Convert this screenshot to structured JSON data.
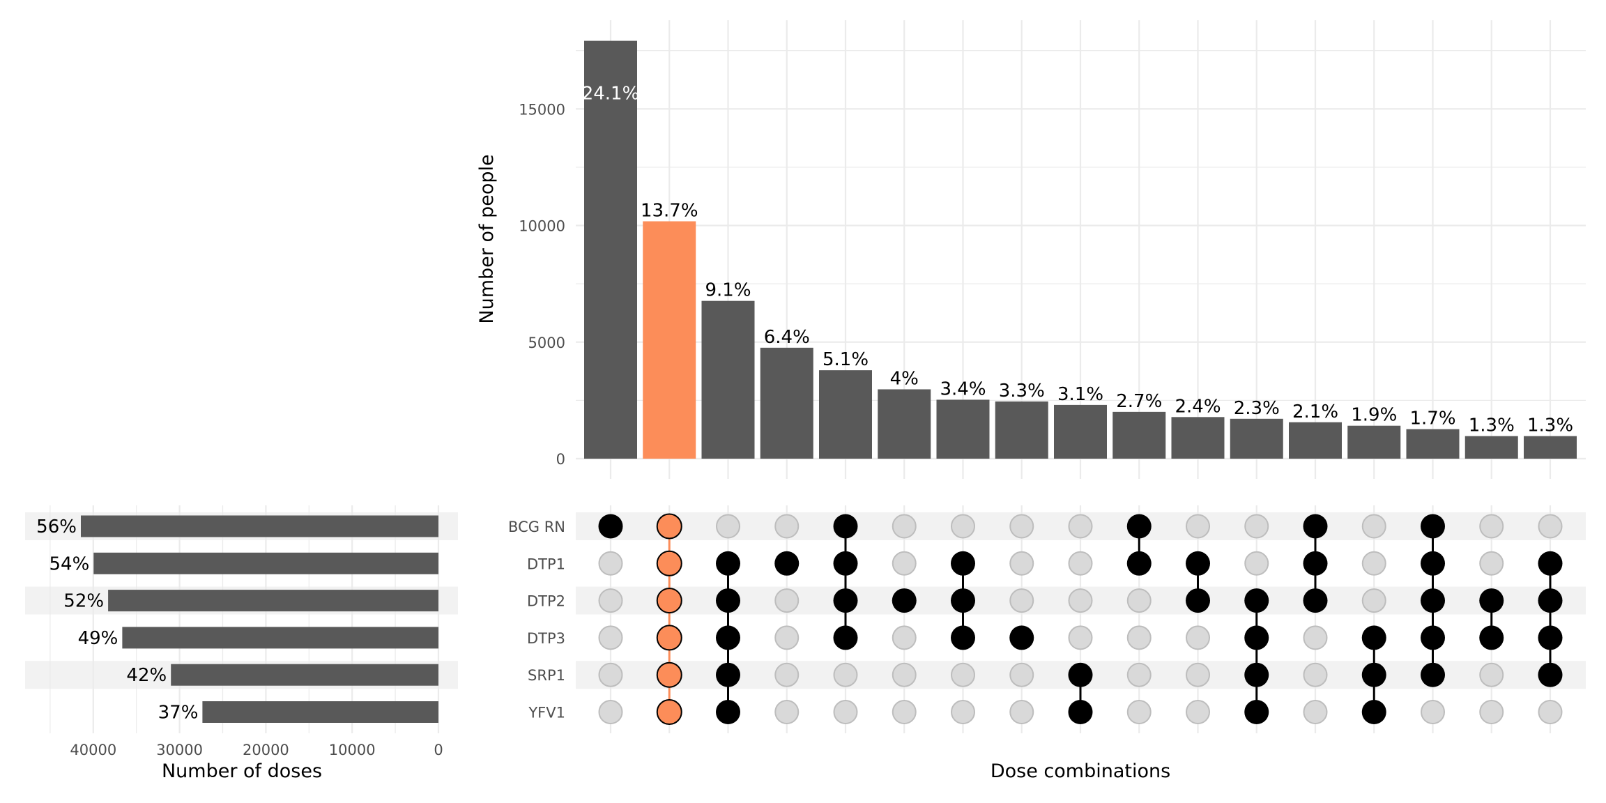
{
  "chart_data": {
    "type": "upset",
    "colors": {
      "bar": "#595959",
      "highlight": "#fc8d59",
      "dot_active": "#000000",
      "dot_inactive_fill": "#d9d9d9",
      "dot_inactive_stroke": "#bdbdbd",
      "stripe": "#f2f2f2",
      "grid": "#ebebeb",
      "highlight_label_text": "#ffffff"
    },
    "intersections": {
      "title": "",
      "xlabel": "Dose combinations",
      "ylabel": "Number of people",
      "ylim": [
        0,
        18500
      ],
      "yticks": [
        0,
        5000,
        10000,
        15000
      ],
      "ytick_labels": [
        "0",
        "5000",
        "10000",
        "15000"
      ],
      "grid": true,
      "values": [
        17920,
        10180,
        6766,
        4758,
        3792,
        2974,
        2528,
        2453,
        2305,
        2007,
        1784,
        1710,
        1561,
        1413,
        1264,
        967,
        967
      ],
      "labels": [
        "24.1%",
        "13.7%",
        "9.1%",
        "6.4%",
        "5.1%",
        "4%",
        "3.4%",
        "3.3%",
        "3.1%",
        "2.7%",
        "2.4%",
        "2.3%",
        "2.1%",
        "1.9%",
        "1.7%",
        "1.3%",
        "1.3%"
      ],
      "highlighted_index": 1,
      "label_inside_index": 0
    },
    "sets": {
      "names": [
        "BCG RN",
        "DTP1",
        "DTP2",
        "DTP3",
        "SRP1",
        "YFV1"
      ],
      "striped_rows": [
        0,
        2,
        4
      ],
      "xlabel": "Number of doses",
      "xlim": [
        0,
        45000
      ],
      "xticks": [
        40000,
        30000,
        20000,
        10000,
        0
      ],
      "xtick_labels": [
        "40000",
        "30000",
        "20000",
        "10000",
        "0"
      ],
      "direction": "reversed",
      "values": [
        41440,
        39960,
        38280,
        36640,
        31000,
        27350
      ],
      "labels": [
        "56%",
        "54%",
        "52%",
        "49%",
        "42%",
        "37%"
      ]
    },
    "membership": [
      [
        1,
        0,
        0,
        0,
        0,
        0
      ],
      [
        1,
        1,
        1,
        1,
        1,
        1
      ],
      [
        0,
        1,
        1,
        1,
        1,
        1
      ],
      [
        0,
        1,
        0,
        0,
        0,
        0
      ],
      [
        1,
        1,
        1,
        1,
        0,
        0
      ],
      [
        0,
        0,
        1,
        0,
        0,
        0
      ],
      [
        0,
        1,
        1,
        1,
        0,
        0
      ],
      [
        0,
        0,
        0,
        1,
        0,
        0
      ],
      [
        0,
        0,
        0,
        0,
        1,
        1
      ],
      [
        1,
        1,
        0,
        0,
        0,
        0
      ],
      [
        0,
        1,
        1,
        0,
        0,
        0
      ],
      [
        0,
        0,
        1,
        1,
        1,
        1
      ],
      [
        1,
        1,
        1,
        0,
        0,
        0
      ],
      [
        0,
        0,
        0,
        1,
        1,
        1
      ],
      [
        1,
        1,
        1,
        1,
        1,
        0
      ],
      [
        0,
        0,
        1,
        1,
        0,
        0
      ],
      [
        0,
        1,
        1,
        1,
        1,
        0
      ]
    ]
  }
}
